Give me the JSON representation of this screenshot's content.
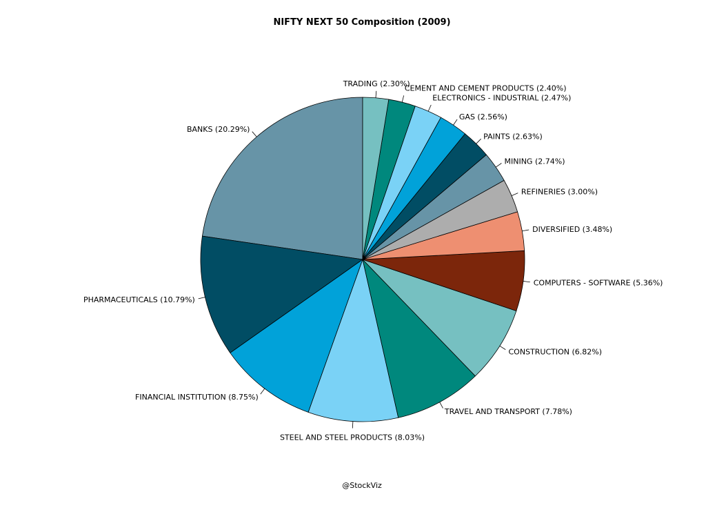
{
  "chart_data": {
    "type": "pie",
    "title": "NIFTY NEXT 50 Composition (2009)",
    "direction": "counterclockwise",
    "slices": [
      {
        "label": "BANKS (20.29%)",
        "value": 20.29,
        "color": "#6794A7"
      },
      {
        "label": "PHARMACEUTICALS (10.79%)",
        "value": 10.79,
        "color": "#014D64"
      },
      {
        "label": "FINANCIAL INSTITUTION (8.75%)",
        "value": 8.75,
        "color": "#01A2D9"
      },
      {
        "label": "STEEL AND STEEL PRODUCTS (8.03%)",
        "value": 8.03,
        "color": "#7AD2F6"
      },
      {
        "label": "TRAVEL AND TRANSPORT (7.78%)",
        "value": 7.78,
        "color": "#00887D"
      },
      {
        "label": "CONSTRUCTION (6.82%)",
        "value": 6.82,
        "color": "#76C0C1"
      },
      {
        "label": "COMPUTERS - SOFTWARE (5.36%)",
        "value": 5.36,
        "color": "#7C260B"
      },
      {
        "label": "DIVERSIFIED (3.48%)",
        "value": 3.48,
        "color": "#EE8F71"
      },
      {
        "label": "REFINERIES (3.00%)",
        "value": 3.0,
        "color": "#ADADAD"
      },
      {
        "label": "MINING (2.74%)",
        "value": 2.74,
        "color": "#6794A7"
      },
      {
        "label": "PAINTS (2.63%)",
        "value": 2.63,
        "color": "#014D64"
      },
      {
        "label": "GAS (2.56%)",
        "value": 2.56,
        "color": "#01A2D9"
      },
      {
        "label": "ELECTRONICS - INDUSTRIAL (2.47%)",
        "value": 2.47,
        "color": "#7AD2F6"
      },
      {
        "label": "CEMENT AND CEMENT PRODUCTS (2.40%)",
        "value": 2.4,
        "color": "#00887D"
      },
      {
        "label": "TRADING (2.30%)",
        "value": 2.3,
        "color": "#76C0C1"
      }
    ]
  },
  "footer": {
    "credit": "@StockViz"
  }
}
